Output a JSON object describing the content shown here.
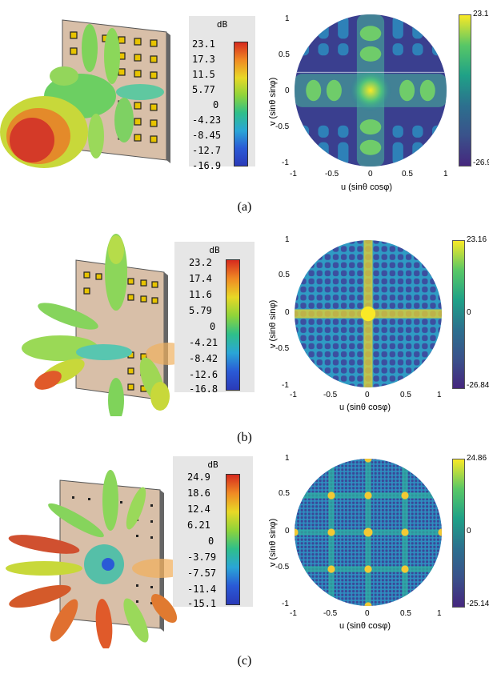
{
  "figure": {
    "panels": [
      {
        "caption": "(a)",
        "scale": {
          "unit": "dB",
          "ticks": [
            "23.1",
            "17.3",
            "11.5",
            "5.77",
            "0",
            "-4.23",
            "-8.45",
            "-12.7",
            "-16.9"
          ]
        },
        "uv_plot": {
          "xlabel": "u (sinθ cosφ)",
          "ylabel": "v (sinθ sinφ)",
          "xticks": [
            "-1",
            "-0.5",
            "0",
            "0.5",
            "1"
          ],
          "yticks": [
            "1",
            "0.5",
            "0",
            "-0.5",
            "-1"
          ],
          "colorbar": {
            "max": "23.1",
            "min": "-26.9",
            "mid": ""
          }
        }
      },
      {
        "caption": "(b)",
        "scale": {
          "unit": "dB",
          "ticks": [
            "23.2",
            "17.4",
            "11.6",
            "5.79",
            "0",
            "-4.21",
            "-8.42",
            "-12.6",
            "-16.8"
          ]
        },
        "uv_plot": {
          "xlabel": "u (sinθ cosφ)",
          "ylabel": "v (sinθ sinφ)",
          "xticks": [
            "-1",
            "-0.5",
            "0",
            "0.5",
            "1"
          ],
          "yticks": [
            "1",
            "0.5",
            "0",
            "-0.5",
            "-1"
          ],
          "colorbar": {
            "max": "23.16",
            "min": "-26.84",
            "mid": "0"
          }
        }
      },
      {
        "caption": "(c)",
        "scale": {
          "unit": "dB",
          "ticks": [
            "24.9",
            "18.6",
            "12.4",
            "6.21",
            "0",
            "-3.79",
            "-7.57",
            "-11.4",
            "-15.1"
          ]
        },
        "uv_plot": {
          "xlabel": "u (sinθ cosφ)",
          "ylabel": "v (sinθ sinφ)",
          "xticks": [
            "-1",
            "-0.5",
            "0",
            "0.5",
            "1"
          ],
          "yticks": [
            "1",
            "0.5",
            "0",
            "-0.5",
            "-1"
          ],
          "colorbar": {
            "max": "24.86",
            "min": "-25.14",
            "mid": "0"
          }
        }
      }
    ]
  }
}
